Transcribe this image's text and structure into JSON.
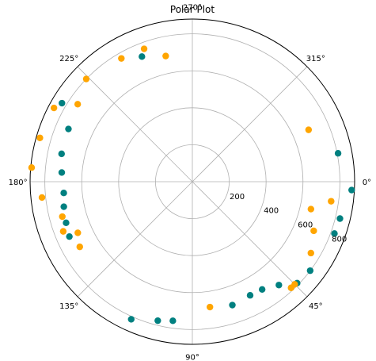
{
  "chart_data": {
    "type": "scatter",
    "projection": "polar",
    "title": "Polar Plot",
    "theta_direction": "clockwise",
    "theta_zero_location": "right",
    "theta_ticks": [
      0,
      45,
      90,
      135,
      180,
      225,
      270,
      315
    ],
    "theta_tick_labels": [
      "0°",
      "45°",
      "90°",
      "135°",
      "180°",
      "225°",
      "270°",
      "315°"
    ],
    "r_ticks": [
      200,
      400,
      600,
      800
    ],
    "r_tick_labels": [
      "200",
      "400",
      "600",
      "800"
    ],
    "r_label_position_deg": 22.5,
    "rlim": [
      0,
      880
    ],
    "grid": true,
    "legend": "none",
    "colors": {
      "teal": "#008080",
      "orange": "#FFA500"
    },
    "series": [
      {
        "color": "#008080",
        "points": [
          {
            "theta": 3,
            "r": 865
          },
          {
            "theta": 14,
            "r": 825
          },
          {
            "theta": 20,
            "r": 820
          },
          {
            "theta": 349,
            "r": 805
          },
          {
            "theta": 37,
            "r": 800
          },
          {
            "theta": 44,
            "r": 790
          },
          {
            "theta": 50,
            "r": 730
          },
          {
            "theta": 57,
            "r": 695
          },
          {
            "theta": 63,
            "r": 690
          },
          {
            "theta": 72,
            "r": 702
          },
          {
            "theta": 98,
            "r": 760
          },
          {
            "theta": 104,
            "r": 775
          },
          {
            "theta": 114,
            "r": 815
          },
          {
            "theta": 156,
            "r": 730
          },
          {
            "theta": 162,
            "r": 720
          },
          {
            "theta": 169,
            "r": 710
          },
          {
            "theta": 175,
            "r": 700
          },
          {
            "theta": 184,
            "r": 710
          },
          {
            "theta": 192,
            "r": 725
          },
          {
            "theta": 203,
            "r": 730
          },
          {
            "theta": 211,
            "r": 825
          },
          {
            "theta": 248,
            "r": 730
          }
        ]
      },
      {
        "color": "#FFA500",
        "points": [
          {
            "theta": 336,
            "r": 690
          },
          {
            "theta": 8,
            "r": 760
          },
          {
            "theta": 13,
            "r": 660
          },
          {
            "theta": 22,
            "r": 710
          },
          {
            "theta": 31,
            "r": 750
          },
          {
            "theta": 45,
            "r": 785
          },
          {
            "theta": 258,
            "r": 695
          },
          {
            "theta": 250,
            "r": 765
          },
          {
            "theta": 240,
            "r": 770
          },
          {
            "theta": 224,
            "r": 800
          },
          {
            "theta": 214,
            "r": 750
          },
          {
            "theta": 208,
            "r": 850
          },
          {
            "theta": 196,
            "r": 860
          },
          {
            "theta": 185,
            "r": 875
          },
          {
            "theta": 174,
            "r": 820
          },
          {
            "theta": 165,
            "r": 730
          },
          {
            "theta": 159,
            "r": 750
          },
          {
            "theta": 156,
            "r": 680
          },
          {
            "theta": 150,
            "r": 705
          },
          {
            "theta": 82,
            "r": 685
          },
          {
            "theta": 47,
            "r": 785
          }
        ]
      }
    ]
  }
}
